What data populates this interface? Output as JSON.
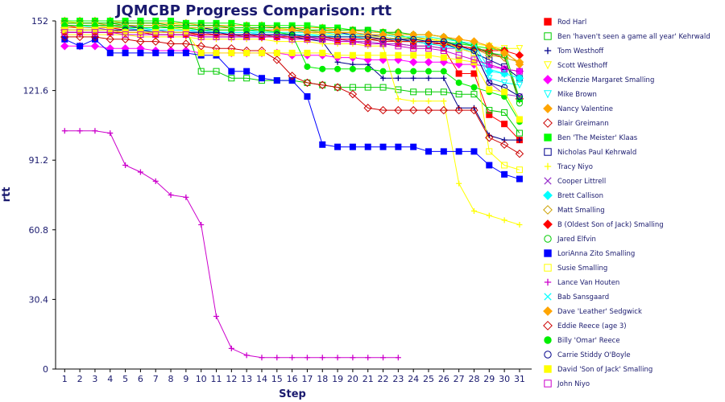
{
  "chart_data": {
    "type": "line",
    "title": "JQMCBP Progress Comparison: rtt",
    "xlabel": "Step",
    "ylabel": "rtt",
    "x": [
      1,
      2,
      3,
      4,
      5,
      6,
      7,
      8,
      9,
      10,
      11,
      12,
      13,
      14,
      15,
      16,
      17,
      18,
      19,
      20,
      21,
      22,
      23,
      24,
      25,
      26,
      27,
      28,
      29,
      30,
      31
    ],
    "ylim": [
      0,
      152
    ],
    "yticks": [
      0,
      30.4,
      60.8,
      91.2,
      121.6,
      152
    ],
    "ytick_labels": [
      "0",
      "30.4",
      "60.8",
      "91.2",
      "121.6",
      "152"
    ],
    "grid": false,
    "legend_position": "right",
    "series": [
      {
        "name": "Rod Harl",
        "color": "#ff0000",
        "marker": "square-filled",
        "values": [
          150,
          149,
          149,
          149,
          148,
          148,
          148,
          147,
          147,
          146,
          146,
          146,
          145,
          145,
          145,
          145,
          144,
          144,
          143,
          143,
          142,
          142,
          142,
          141,
          141,
          140,
          129,
          129,
          111,
          107,
          100
        ]
      },
      {
        "name": "Ben 'haven't seen a game all year' Kehrwald",
        "color": "#00cc00",
        "marker": "square-open",
        "values": [
          151,
          151,
          151,
          151,
          150,
          150,
          150,
          149,
          149,
          130,
          130,
          127,
          127,
          126,
          126,
          126,
          125,
          124,
          123,
          123,
          123,
          123,
          122,
          121,
          121,
          121,
          120,
          120,
          113,
          112,
          103
        ]
      },
      {
        "name": "Tom Westhoff",
        "color": "#00008b",
        "marker": "plus",
        "values": [
          147,
          147,
          147,
          147,
          147,
          147,
          146,
          146,
          146,
          145,
          145,
          145,
          145,
          145,
          145,
          145,
          144,
          143,
          134,
          133,
          133,
          127,
          127,
          127,
          127,
          127,
          114,
          114,
          102,
          100,
          100
        ]
      },
      {
        "name": "Scott Westhoff",
        "color": "#ffff00",
        "marker": "triangle-down-open",
        "values": [
          152,
          151,
          151,
          151,
          151,
          151,
          151,
          151,
          150,
          150,
          150,
          149,
          149,
          149,
          149,
          148,
          148,
          148,
          147,
          147,
          146,
          146,
          145,
          144,
          144,
          144,
          143,
          142,
          141,
          140,
          140
        ]
      },
      {
        "name": "McKenzie Margaret Smalling",
        "color": "#ff00ff",
        "marker": "diamond-filled",
        "values": [
          141,
          141,
          141,
          140,
          140,
          140,
          139,
          139,
          139,
          138,
          138,
          138,
          138,
          138,
          138,
          137,
          137,
          137,
          136,
          136,
          135,
          135,
          135,
          134,
          134,
          134,
          133,
          133,
          132,
          131,
          130
        ]
      },
      {
        "name": "Mike Brown",
        "color": "#00ffff",
        "marker": "triangle-down-open",
        "values": [
          150,
          150,
          149,
          149,
          149,
          149,
          148,
          148,
          148,
          147,
          147,
          147,
          147,
          146,
          146,
          146,
          146,
          145,
          145,
          145,
          144,
          144,
          144,
          143,
          143,
          142,
          142,
          141,
          127,
          125,
          124
        ]
      },
      {
        "name": "Nancy Valentine",
        "color": "#ffa500",
        "marker": "diamond-filled",
        "values": [
          152,
          152,
          152,
          152,
          151,
          151,
          151,
          151,
          151,
          150,
          150,
          150,
          150,
          150,
          149,
          149,
          149,
          149,
          148,
          148,
          147,
          147,
          147,
          146,
          146,
          145,
          144,
          143,
          141,
          139,
          133
        ]
      },
      {
        "name": "Blair Greimann",
        "color": "#cc0000",
        "marker": "diamond-open",
        "values": [
          148,
          148,
          148,
          148,
          147,
          147,
          147,
          147,
          147,
          146,
          146,
          146,
          146,
          146,
          145,
          145,
          145,
          145,
          144,
          144,
          144,
          143,
          143,
          143,
          142,
          142,
          141,
          140,
          138,
          136,
          118
        ]
      },
      {
        "name": "Ben 'The Meister' Klaas",
        "color": "#00ff00",
        "marker": "square-filled",
        "values": [
          152,
          152,
          152,
          152,
          152,
          152,
          152,
          152,
          151,
          151,
          151,
          151,
          150,
          150,
          150,
          150,
          150,
          149,
          149,
          148,
          148,
          147,
          146,
          144,
          144,
          143,
          142,
          141,
          140,
          139,
          118
        ]
      },
      {
        "name": "Nicholas Paul Kehrwald",
        "color": "#00008b",
        "marker": "square-open",
        "values": [
          150,
          150,
          150,
          150,
          150,
          149,
          149,
          149,
          149,
          149,
          148,
          148,
          148,
          148,
          148,
          148,
          147,
          147,
          147,
          146,
          146,
          145,
          144,
          143,
          143,
          142,
          140,
          138,
          135,
          132,
          127
        ]
      },
      {
        "name": "Tracy Niyo",
        "color": "#ffff00",
        "marker": "plus",
        "values": [
          146,
          146,
          146,
          146,
          146,
          145,
          145,
          145,
          145,
          144,
          144,
          144,
          144,
          144,
          143,
          143,
          143,
          142,
          142,
          142,
          141,
          141,
          118,
          117,
          117,
          117,
          81,
          69,
          67,
          65,
          63
        ]
      },
      {
        "name": "Cooper Littrell",
        "color": "#9932cc",
        "marker": "x",
        "values": [
          149,
          149,
          149,
          148,
          148,
          148,
          148,
          147,
          147,
          147,
          146,
          146,
          146,
          146,
          146,
          145,
          145,
          144,
          144,
          143,
          143,
          142,
          142,
          141,
          141,
          140,
          140,
          139,
          125,
          120,
          119
        ]
      },
      {
        "name": "Brett Callison",
        "color": "#00ffff",
        "marker": "diamond-filled",
        "values": [
          149,
          149,
          149,
          149,
          149,
          148,
          148,
          148,
          148,
          148,
          147,
          147,
          147,
          147,
          147,
          146,
          146,
          146,
          145,
          145,
          144,
          144,
          143,
          143,
          142,
          141,
          140,
          139,
          130,
          129,
          127
        ]
      },
      {
        "name": "Matt Smalling",
        "color": "#cca000",
        "marker": "diamond-open",
        "values": [
          151,
          151,
          151,
          150,
          150,
          150,
          150,
          150,
          149,
          149,
          149,
          149,
          149,
          148,
          148,
          148,
          148,
          147,
          147,
          147,
          146,
          146,
          145,
          145,
          144,
          143,
          141,
          140,
          137,
          136,
          134
        ]
      },
      {
        "name": "B (Oldest Son of Jack) Smalling",
        "color": "#ff0000",
        "marker": "diamond-filled",
        "values": [
          147,
          147,
          147,
          147,
          147,
          147,
          146,
          146,
          146,
          146,
          146,
          146,
          146,
          145,
          145,
          145,
          145,
          145,
          144,
          144,
          144,
          144,
          143,
          143,
          143,
          142,
          141,
          140,
          139,
          139,
          137
        ]
      },
      {
        "name": "Jared Elfvin",
        "color": "#00cc00",
        "marker": "circle-open",
        "values": [
          151,
          151,
          151,
          151,
          151,
          151,
          151,
          150,
          150,
          150,
          150,
          149,
          149,
          149,
          149,
          149,
          148,
          148,
          148,
          148,
          148,
          147,
          147,
          146,
          146,
          145,
          143,
          141,
          138,
          137,
          116
        ]
      },
      {
        "name": "LoriAnna Zito Smalling",
        "color": "#0000ff",
        "marker": "square-filled",
        "values": [
          144,
          141,
          144,
          138,
          138,
          138,
          138,
          138,
          138,
          137,
          137,
          130,
          130,
          127,
          126,
          126,
          119,
          98,
          97,
          97,
          97,
          97,
          97,
          97,
          95,
          95,
          95,
          95,
          89,
          85,
          83
        ]
      },
      {
        "name": "Susie Smalling",
        "color": "#ffff00",
        "marker": "square-open",
        "values": [
          150,
          150,
          150,
          149,
          149,
          149,
          149,
          149,
          148,
          148,
          148,
          148,
          148,
          147,
          147,
          147,
          147,
          146,
          146,
          146,
          145,
          145,
          144,
          144,
          144,
          143,
          140,
          138,
          95,
          89,
          87
        ]
      },
      {
        "name": "Lance Van Houten",
        "color": "#cc00cc",
        "marker": "plus",
        "values": [
          104,
          104,
          104,
          103,
          89,
          86,
          82,
          76,
          75,
          63,
          23,
          9,
          6,
          5,
          5,
          5,
          5,
          5,
          5,
          5,
          5,
          5,
          5,
          null,
          null,
          null,
          null,
          null,
          null,
          null,
          null
        ]
      },
      {
        "name": "Bab Sansgaard",
        "color": "#00ffff",
        "marker": "x",
        "values": [
          149,
          149,
          149,
          149,
          149,
          149,
          148,
          148,
          148,
          148,
          148,
          148,
          148,
          147,
          147,
          147,
          147,
          147,
          146,
          146,
          146,
          146,
          145,
          145,
          145,
          144,
          143,
          142,
          131,
          129,
          127
        ]
      },
      {
        "name": "Dave 'Leather' Sedgwick",
        "color": "#ffa500",
        "marker": "diamond-filled",
        "values": [
          149,
          149,
          149,
          149,
          149,
          149,
          149,
          149,
          149,
          148,
          148,
          148,
          148,
          148,
          148,
          148,
          147,
          147,
          147,
          147,
          146,
          146,
          146,
          146,
          146,
          145,
          144,
          143,
          141,
          138,
          134
        ]
      },
      {
        "name": "Eddie Reece (age 3)",
        "color": "#cc0000",
        "marker": "diamond-open",
        "values": [
          145,
          145,
          145,
          144,
          144,
          143,
          143,
          142,
          142,
          141,
          140,
          140,
          139,
          139,
          135,
          128,
          125,
          124,
          123,
          120,
          114,
          113,
          113,
          113,
          113,
          113,
          113,
          113,
          101,
          98,
          94
        ]
      },
      {
        "name": "Billy 'Omar' Reece",
        "color": "#00ee00",
        "marker": "circle-filled",
        "values": [
          150,
          150,
          150,
          150,
          149,
          149,
          149,
          149,
          149,
          148,
          148,
          148,
          148,
          148,
          147,
          146,
          132,
          131,
          131,
          131,
          131,
          130,
          130,
          130,
          130,
          130,
          125,
          123,
          121,
          119,
          108
        ]
      },
      {
        "name": "Carrie Stiddy O'Boyle",
        "color": "#00008b",
        "marker": "circle-open",
        "values": [
          148,
          148,
          148,
          148,
          148,
          148,
          147,
          147,
          147,
          147,
          147,
          146,
          146,
          146,
          146,
          146,
          145,
          145,
          145,
          145,
          145,
          144,
          144,
          144,
          143,
          143,
          141,
          139,
          125,
          123,
          119
        ]
      },
      {
        "name": "David 'Son of Jack' Smalling",
        "color": "#ffff00",
        "marker": "square-filled",
        "values": [
          148,
          148,
          148,
          148,
          147,
          147,
          147,
          147,
          147,
          138,
          138,
          138,
          138,
          138,
          138,
          138,
          138,
          138,
          137,
          137,
          137,
          137,
          137,
          137,
          137,
          136,
          135,
          134,
          122,
          121,
          109
        ]
      },
      {
        "name": "John Niyo",
        "color": "#cc00cc",
        "marker": "square-open",
        "values": [
          147,
          147,
          147,
          147,
          146,
          146,
          146,
          146,
          146,
          145,
          145,
          145,
          145,
          145,
          145,
          144,
          144,
          144,
          143,
          143,
          142,
          142,
          141,
          140,
          140,
          139,
          137,
          135,
          133,
          131,
          130
        ]
      }
    ]
  }
}
